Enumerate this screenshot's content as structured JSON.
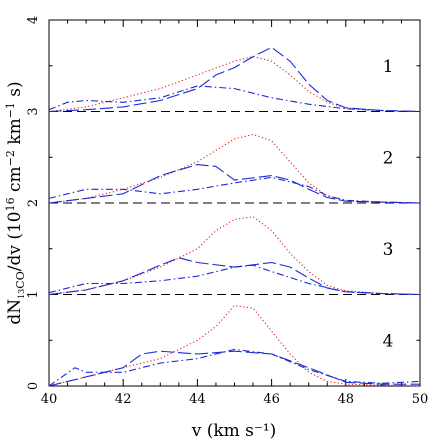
{
  "chart_data": {
    "type": "line",
    "xlabel": "v (km s⁻¹)",
    "ylabel_parts": [
      "dN",
      "13",
      "CO",
      "/dv (10",
      "16",
      " cm",
      "−2",
      " km",
      "−1",
      " s)"
    ],
    "xlim": [
      40,
      50
    ],
    "ylim": [
      0,
      4
    ],
    "x_ticks": [
      40,
      42,
      44,
      46,
      48,
      50
    ],
    "y_ticks": [
      0,
      1,
      2,
      3,
      4
    ],
    "grid": false,
    "colors": {
      "dotted": "#e02020",
      "dashed": "#1a2bd6",
      "dashdot": "#1a2bd6",
      "baseline": "#000000",
      "axis": "#000000"
    },
    "panels": [
      {
        "label": "1",
        "offset": 3,
        "series": [
          {
            "style": "dotted",
            "x": [
              40,
              41,
              42,
              43,
              44,
              45,
              45.5,
              46,
              46.5,
              47,
              47.5,
              48,
              49,
              50
            ],
            "y": [
              0.0,
              0.05,
              0.15,
              0.25,
              0.4,
              0.55,
              0.6,
              0.55,
              0.4,
              0.22,
              0.1,
              0.04,
              0.01,
              0.0
            ]
          },
          {
            "style": "dashed",
            "x": [
              40,
              41,
              42,
              43,
              44,
              44.5,
              45,
              45.5,
              46,
              46.5,
              47,
              47.5,
              48,
              49,
              50
            ],
            "y": [
              0.0,
              0.02,
              0.05,
              0.12,
              0.25,
              0.4,
              0.48,
              0.6,
              0.7,
              0.55,
              0.3,
              0.12,
              0.04,
              0.01,
              0.0
            ]
          },
          {
            "style": "dashdot",
            "x": [
              40,
              40.5,
              41,
              42,
              43,
              44,
              45,
              46,
              47,
              48,
              49,
              50
            ],
            "y": [
              0.02,
              0.1,
              0.12,
              0.1,
              0.15,
              0.28,
              0.25,
              0.15,
              0.08,
              0.03,
              0.01,
              0.0
            ]
          }
        ]
      },
      {
        "label": "2",
        "offset": 2,
        "series": [
          {
            "style": "dotted",
            "x": [
              40,
              41,
              42,
              43,
              44,
              45,
              45.5,
              46,
              46.5,
              47,
              47.5,
              48,
              49,
              50
            ],
            "y": [
              0.0,
              0.05,
              0.15,
              0.28,
              0.45,
              0.7,
              0.75,
              0.68,
              0.45,
              0.22,
              0.08,
              0.02,
              0.01,
              0.0
            ]
          },
          {
            "style": "dashed",
            "x": [
              40,
              41,
              42,
              43,
              44,
              44.5,
              45,
              46,
              46.5,
              47,
              47.5,
              48,
              49,
              50
            ],
            "y": [
              0.0,
              0.05,
              0.1,
              0.3,
              0.42,
              0.4,
              0.25,
              0.3,
              0.25,
              0.15,
              0.06,
              0.02,
              0.01,
              0.0
            ]
          },
          {
            "style": "dashdot",
            "x": [
              40,
              41,
              42,
              43,
              44,
              45,
              46,
              47,
              47.5,
              48,
              49,
              50
            ],
            "y": [
              0.05,
              0.15,
              0.15,
              0.1,
              0.15,
              0.22,
              0.28,
              0.18,
              0.08,
              0.03,
              0.01,
              0.0
            ]
          }
        ]
      },
      {
        "label": "3",
        "offset": 1,
        "series": [
          {
            "style": "dotted",
            "x": [
              40,
              41,
              42,
              43,
              44,
              44.5,
              45,
              45.5,
              46,
              46.5,
              47,
              47.5,
              48,
              49,
              50
            ],
            "y": [
              0.0,
              0.05,
              0.15,
              0.3,
              0.5,
              0.7,
              0.82,
              0.85,
              0.7,
              0.45,
              0.25,
              0.1,
              0.04,
              0.01,
              0.0
            ]
          },
          {
            "style": "dashed",
            "x": [
              40,
              41,
              42,
              43,
              43.5,
              44,
              45,
              46,
              46.5,
              47,
              47.5,
              48,
              49,
              50
            ],
            "y": [
              0.0,
              0.05,
              0.15,
              0.32,
              0.4,
              0.35,
              0.3,
              0.35,
              0.3,
              0.18,
              0.07,
              0.03,
              0.01,
              0.0
            ]
          },
          {
            "style": "dashdot",
            "x": [
              40,
              41,
              42,
              43,
              44,
              45,
              45.5,
              46,
              47,
              48,
              49,
              50
            ],
            "y": [
              0.02,
              0.12,
              0.12,
              0.15,
              0.2,
              0.3,
              0.32,
              0.25,
              0.12,
              0.03,
              0.01,
              0.0
            ]
          }
        ]
      },
      {
        "label": "4",
        "offset": 0,
        "series": [
          {
            "style": "dotted",
            "x": [
              40,
              41,
              42,
              43,
              44,
              44.5,
              45,
              45.5,
              46,
              46.5,
              47,
              47.5,
              48,
              49,
              50
            ],
            "y": [
              0.0,
              0.1,
              0.2,
              0.3,
              0.5,
              0.65,
              0.88,
              0.85,
              0.6,
              0.35,
              0.15,
              0.05,
              0.02,
              0.01,
              0.0
            ]
          },
          {
            "style": "dashed",
            "x": [
              40,
              41,
              42,
              42.5,
              43,
              44,
              45,
              46,
              47,
              48,
              49,
              50
            ],
            "y": [
              0.0,
              0.1,
              0.2,
              0.35,
              0.38,
              0.35,
              0.38,
              0.35,
              0.2,
              0.04,
              0.02,
              0.02
            ]
          },
          {
            "style": "dashdot",
            "x": [
              40,
              40.7,
              41,
              42,
              43,
              44,
              45,
              46,
              47,
              48,
              49,
              50
            ],
            "y": [
              0.0,
              0.2,
              0.15,
              0.15,
              0.25,
              0.3,
              0.4,
              0.35,
              0.18,
              0.05,
              0.03,
              0.05
            ]
          }
        ]
      }
    ]
  }
}
